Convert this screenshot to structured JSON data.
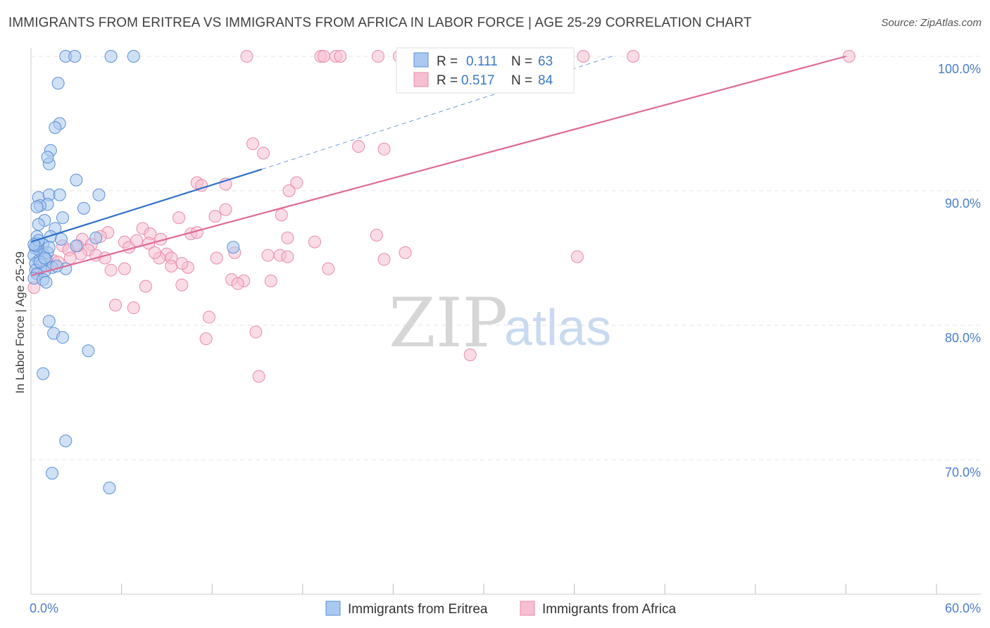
{
  "title": "IMMIGRANTS FROM ERITREA VS IMMIGRANTS FROM AFRICA IN LABOR FORCE | AGE 25-29 CORRELATION CHART",
  "source": "Source: ZipAtlas.com",
  "watermark": {
    "part1": "ZIP",
    "part2": "atlas"
  },
  "colors": {
    "eritrea_fill": "#a9c9ef",
    "eritrea_stroke": "#5b8fd8",
    "eritrea_line": "#2f6fcb",
    "africa_fill": "#f6bfd2",
    "africa_stroke": "#e98aab",
    "africa_line": "#e06a95",
    "grid": "#e3e3e3",
    "axis_label": "#4a7ec9"
  },
  "legend": {
    "rows": [
      {
        "r_label": "R =",
        "r_value": "0.111",
        "n_label": "N =",
        "n_value": "63"
      },
      {
        "r_label": "R =",
        "r_value": "0.517",
        "n_label": "N =",
        "n_value": "84"
      }
    ]
  },
  "chart_data": {
    "type": "scatter",
    "ylabel": "In Labor Force | Age 25-29",
    "xlim": [
      0,
      60
    ],
    "ylim": [
      61.5,
      101.5
    ],
    "x_tick_labels": [
      {
        "value": 0,
        "label": "0.0%"
      },
      {
        "value": 60,
        "label": "60.0%"
      }
    ],
    "y_tick_labels": [
      {
        "value": 70,
        "label": "70.0%"
      },
      {
        "value": 80,
        "label": "80.0%"
      },
      {
        "value": 90,
        "label": "90.0%"
      },
      {
        "value": 100,
        "label": "100.0%"
      }
    ],
    "x_minor_ticks": [
      6,
      12,
      18,
      24,
      30,
      36,
      42,
      48,
      54,
      60
    ],
    "grid": true,
    "legend_position": "top-center",
    "series": [
      {
        "name": "Immigrants from Eritrea",
        "r": 0.111,
        "n": 63,
        "trend": {
          "x": [
            0,
            15.3
          ],
          "y": [
            86.2,
            91.6
          ]
        },
        "trend_dashed": {
          "x": [
            15.3,
            38.5
          ],
          "y": [
            91.6,
            100.0
          ]
        },
        "points": [
          [
            2.3,
            100
          ],
          [
            2.9,
            100
          ],
          [
            5.3,
            100
          ],
          [
            6.8,
            100
          ],
          [
            1.8,
            98
          ],
          [
            1.9,
            95
          ],
          [
            1.6,
            94.7
          ],
          [
            1.3,
            93
          ],
          [
            1.2,
            92
          ],
          [
            1.1,
            92.5
          ],
          [
            3,
            90.8
          ],
          [
            4.5,
            89.7
          ],
          [
            0.5,
            89.5
          ],
          [
            1.2,
            89.7
          ],
          [
            1.9,
            89.7
          ],
          [
            1.1,
            89
          ],
          [
            0.6,
            88.9
          ],
          [
            3.5,
            88.7
          ],
          [
            0.4,
            88.8
          ],
          [
            2.1,
            88
          ],
          [
            0.9,
            87.8
          ],
          [
            0.5,
            87.5
          ],
          [
            1.6,
            87.2
          ],
          [
            0.4,
            86.6
          ],
          [
            1.3,
            86.6
          ],
          [
            2,
            86.4
          ],
          [
            4.3,
            86.5
          ],
          [
            0.4,
            86.1
          ],
          [
            0.8,
            86.0
          ],
          [
            3,
            85.9
          ],
          [
            13.4,
            85.8
          ],
          [
            0.3,
            85.7
          ],
          [
            0.6,
            85.5
          ],
          [
            0.8,
            85.3
          ],
          [
            1.1,
            85.4
          ],
          [
            0.2,
            85.2
          ],
          [
            0.5,
            84.8
          ],
          [
            1.0,
            84.9
          ],
          [
            0.3,
            84.6
          ],
          [
            0.7,
            84.5
          ],
          [
            1.4,
            84.3
          ],
          [
            2.3,
            84.2
          ],
          [
            0.3,
            84.1
          ],
          [
            0.9,
            84.0
          ],
          [
            0.4,
            83.8
          ],
          [
            0.2,
            83.5
          ],
          [
            0.8,
            83.4
          ],
          [
            1.0,
            83.2
          ],
          [
            1.2,
            80.3
          ],
          [
            1.5,
            79.4
          ],
          [
            2.1,
            79.1
          ],
          [
            3.8,
            78.1
          ],
          [
            0.8,
            76.4
          ],
          [
            2.3,
            71.4
          ],
          [
            1.4,
            69.0
          ],
          [
            5.2,
            67.9
          ],
          [
            0.6,
            84.7
          ],
          [
            1.2,
            85.8
          ],
          [
            0.3,
            85.9
          ],
          [
            0.5,
            86.3
          ],
          [
            1.7,
            84.4
          ],
          [
            0.2,
            86.0
          ],
          [
            0.9,
            85.0
          ]
        ]
      },
      {
        "name": "Immigrants from Africa",
        "r": 0.517,
        "n": 84,
        "trend": {
          "x": [
            0,
            54
          ],
          "y": [
            83.7,
            100.0
          ]
        },
        "points": [
          [
            14.3,
            100
          ],
          [
            19.2,
            100
          ],
          [
            19.4,
            100
          ],
          [
            20.2,
            100
          ],
          [
            20.5,
            100
          ],
          [
            23,
            100
          ],
          [
            24.4,
            100
          ],
          [
            24.6,
            100
          ],
          [
            36.6,
            100
          ],
          [
            39.9,
            100
          ],
          [
            54.2,
            100
          ],
          [
            14.7,
            93.5
          ],
          [
            21.7,
            93.3
          ],
          [
            23.4,
            93.1
          ],
          [
            15.4,
            92.8
          ],
          [
            11,
            90.6
          ],
          [
            11.3,
            90.4
          ],
          [
            12.9,
            90.5
          ],
          [
            17.6,
            90.6
          ],
          [
            17.1,
            90.0
          ],
          [
            12.9,
            88.6
          ],
          [
            12.2,
            88.1
          ],
          [
            16.6,
            88.2
          ],
          [
            9.8,
            88.0
          ],
          [
            7.4,
            87.2
          ],
          [
            5.1,
            86.9
          ],
          [
            7.9,
            86.8
          ],
          [
            10.6,
            86.8
          ],
          [
            11.0,
            86.9
          ],
          [
            22.9,
            86.7
          ],
          [
            17,
            86.5
          ],
          [
            3.4,
            86.4
          ],
          [
            6.2,
            86.2
          ],
          [
            8.6,
            86.4
          ],
          [
            18.8,
            86.2
          ],
          [
            4.0,
            86.0
          ],
          [
            2.1,
            85.9
          ],
          [
            6.5,
            85.8
          ],
          [
            7.8,
            86.1
          ],
          [
            3.8,
            85.6
          ],
          [
            2.5,
            85.6
          ],
          [
            3.3,
            85.3
          ],
          [
            4.3,
            85.2
          ],
          [
            9.0,
            85.3
          ],
          [
            13.5,
            85.4
          ],
          [
            15.7,
            85.2
          ],
          [
            16.5,
            85.2
          ],
          [
            17.0,
            85.1
          ],
          [
            24.8,
            85.4
          ],
          [
            36.2,
            85.1
          ],
          [
            4.9,
            85.0
          ],
          [
            8.5,
            85.0
          ],
          [
            9.3,
            85.0
          ],
          [
            12.3,
            85.0
          ],
          [
            23.4,
            84.9
          ],
          [
            1.5,
            84.8
          ],
          [
            9.3,
            84.4
          ],
          [
            10.4,
            84.3
          ],
          [
            5.3,
            84.1
          ],
          [
            6.2,
            84.2
          ],
          [
            19.7,
            84.2
          ],
          [
            13.3,
            83.4
          ],
          [
            14.1,
            83.3
          ],
          [
            15.9,
            83.3
          ],
          [
            13.7,
            83.1
          ],
          [
            10.0,
            83.0
          ],
          [
            7.6,
            82.9
          ],
          [
            5.6,
            81.5
          ],
          [
            6.8,
            81.3
          ],
          [
            11.8,
            80.6
          ],
          [
            11.6,
            79.0
          ],
          [
            14.9,
            79.5
          ],
          [
            29.1,
            77.8
          ],
          [
            15.1,
            76.2
          ],
          [
            0.2,
            82.8
          ],
          [
            0.4,
            83.9
          ],
          [
            1.0,
            84.4
          ],
          [
            1.8,
            84.7
          ],
          [
            2.6,
            85.0
          ],
          [
            3.1,
            85.9
          ],
          [
            4.6,
            86.6
          ],
          [
            7.0,
            86.3
          ],
          [
            8.2,
            85.4
          ],
          [
            10.0,
            84.6
          ]
        ]
      }
    ]
  },
  "bottom_legend": [
    {
      "label": "Immigrants from Eritrea"
    },
    {
      "label": "Immigrants from Africa"
    }
  ]
}
